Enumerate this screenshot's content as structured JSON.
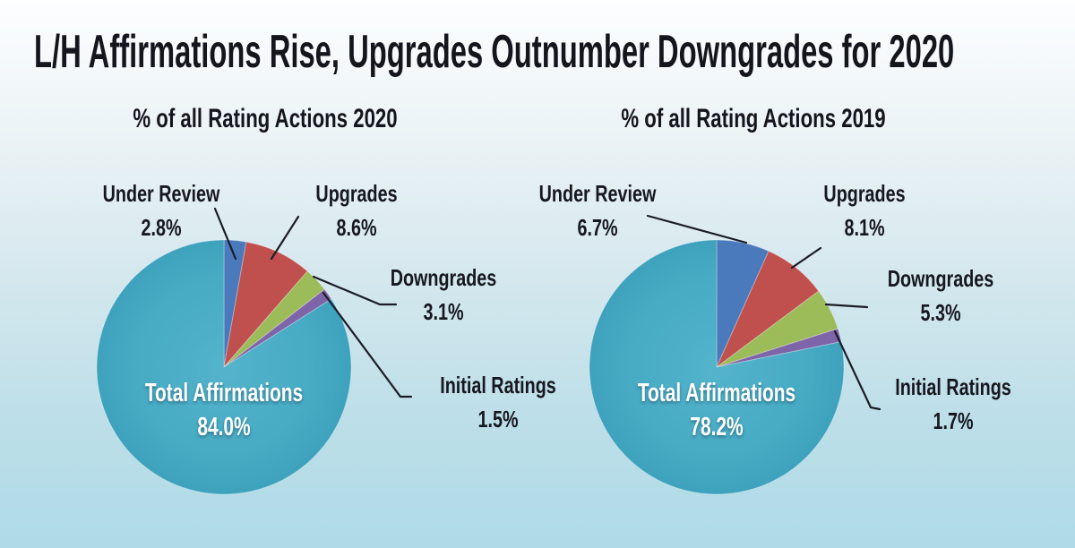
{
  "title": "L/H Affirmations Rise, Upgrades Outnumber Downgrades for 2020",
  "colors": {
    "background_top": "#fdfeff",
    "background_bottom": "#aedbe7",
    "title_text": "#15151e",
    "label_text": "#17171f",
    "center_label_text": "#ffffff",
    "leader_line": "#1c1c26",
    "slice_under_review": "#4a7abc",
    "slice_upgrades": "#c0504d",
    "slice_downgrades": "#9cbb59",
    "slice_initial_ratings": "#7e64a8",
    "slice_total_affirmations": "#47abc4"
  },
  "chart_data": [
    {
      "type": "pie",
      "year": "2020",
      "title": "% of all Rating Actions 2020",
      "start_angle": "12-oclock",
      "direction": "clockwise",
      "legend_position": "callout-labels",
      "slices": [
        {
          "label": "Under Review",
          "value": 2.8,
          "display": "2.8%",
          "color": "#4a7abc"
        },
        {
          "label": "Upgrades",
          "value": 8.6,
          "display": "8.6%",
          "color": "#c0504d"
        },
        {
          "label": "Downgrades",
          "value": 3.1,
          "display": "3.1%",
          "color": "#9cbb59"
        },
        {
          "label": "Initial Ratings",
          "value": 1.5,
          "display": "1.5%",
          "color": "#7e64a8"
        },
        {
          "label": "Total Affirmations",
          "value": 84.0,
          "display": "84.0%",
          "color": "#47abc4"
        }
      ]
    },
    {
      "type": "pie",
      "year": "2019",
      "title": "% of all Rating Actions 2019",
      "start_angle": "12-oclock",
      "direction": "clockwise",
      "legend_position": "callout-labels",
      "slices": [
        {
          "label": "Under Review",
          "value": 6.7,
          "display": "6.7%",
          "color": "#4a7abc"
        },
        {
          "label": "Upgrades",
          "value": 8.1,
          "display": "8.1%",
          "color": "#c0504d"
        },
        {
          "label": "Downgrades",
          "value": 5.3,
          "display": "5.3%",
          "color": "#9cbb59"
        },
        {
          "label": "Initial Ratings",
          "value": 1.7,
          "display": "1.7%",
          "color": "#7e64a8"
        },
        {
          "label": "Total Affirmations",
          "value": 78.2,
          "display": "78.2%",
          "color": "#47abc4"
        }
      ]
    }
  ]
}
